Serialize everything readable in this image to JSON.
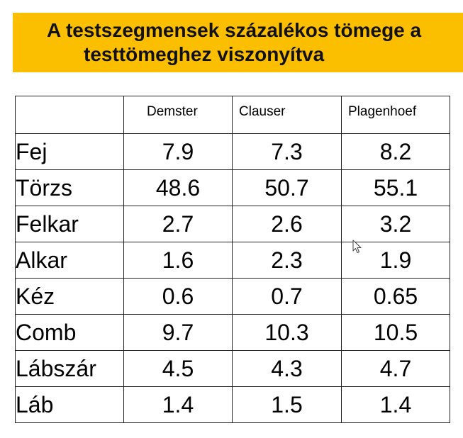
{
  "title": {
    "line1": "A testszegmensek százalékos tömege a",
    "line2": "testtömeghez viszonyítva"
  },
  "table": {
    "columns": [
      "",
      "Demster",
      "Clauser",
      "Plagenhoef"
    ],
    "rows": [
      {
        "label": "Fej",
        "values": [
          "7.9",
          "7.3",
          "8.2"
        ]
      },
      {
        "label": "Törzs",
        "values": [
          "48.6",
          "50.7",
          "55.1"
        ]
      },
      {
        "label": "Felkar",
        "values": [
          "2.7",
          "2.6",
          "3.2"
        ]
      },
      {
        "label": "Alkar",
        "values": [
          "1.6",
          "2.3",
          "1.9"
        ]
      },
      {
        "label": "Kéz",
        "values": [
          "0.6",
          "0.7",
          "0.65"
        ]
      },
      {
        "label": "Comb",
        "values": [
          "9.7",
          "10.3",
          "10.5"
        ]
      },
      {
        "label": "Lábszár",
        "values": [
          "4.5",
          "4.3",
          "4.7"
        ]
      },
      {
        "label": "Láb",
        "values": [
          "1.4",
          "1.5",
          "1.4"
        ]
      }
    ]
  },
  "colors": {
    "banner": "#fbbf00",
    "border": "#222222",
    "text": "#000000"
  },
  "icons": {
    "cursor": "mouse-pointer-icon"
  }
}
